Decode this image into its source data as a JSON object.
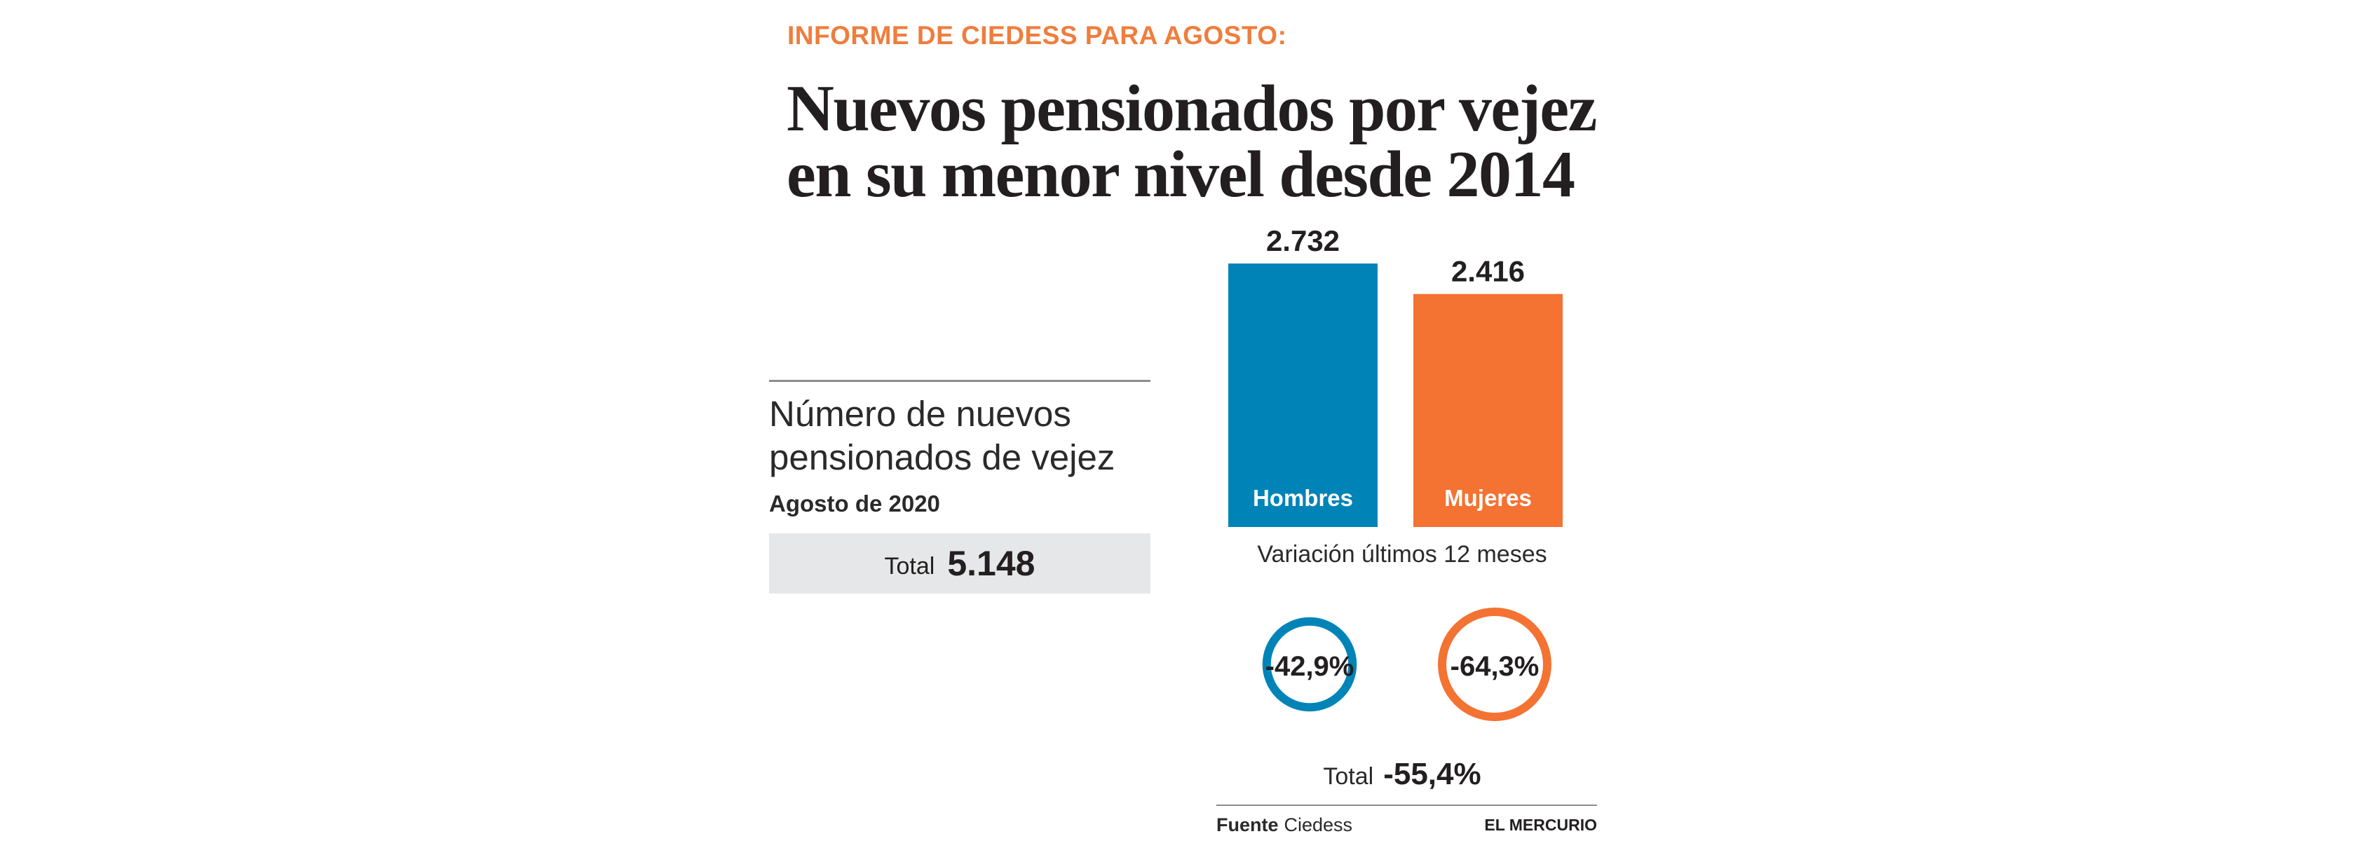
{
  "header": {
    "kicker": "INFORME DE CIEDESS PARA AGOSTO:",
    "headline_line1": "Nuevos pensionados por vejez",
    "headline_line2": "en su menor nivel desde 2014"
  },
  "panel": {
    "subtitle_line1": "Número de nuevos",
    "subtitle_line2": "pensionados de vejez",
    "date": "Agosto de 2020",
    "total_label": "Total",
    "total_value": "5.148"
  },
  "chart_data": [
    {
      "type": "bar",
      "categories": [
        "Hombres",
        "Mujeres"
      ],
      "values": [
        2732,
        2416
      ],
      "value_labels": [
        "2.732",
        "2.416"
      ],
      "colors": [
        "#0084b8",
        "#f47232"
      ],
      "ylim": [
        0,
        2732
      ],
      "grid": false
    },
    {
      "type": "bubble",
      "title": "Variación últimos 12 meses",
      "categories": [
        "Hombres",
        "Mujeres"
      ],
      "values": [
        -42.9,
        -64.3
      ],
      "value_labels": [
        "-42,9%",
        "-64,3%"
      ],
      "colors": [
        "#0084b8",
        "#f47232"
      ],
      "total_label": "Total",
      "total_value": "-55,4%"
    }
  ],
  "footer": {
    "source_label": "Fuente",
    "source_value": "Ciedess",
    "brand": "EL MERCURIO"
  }
}
